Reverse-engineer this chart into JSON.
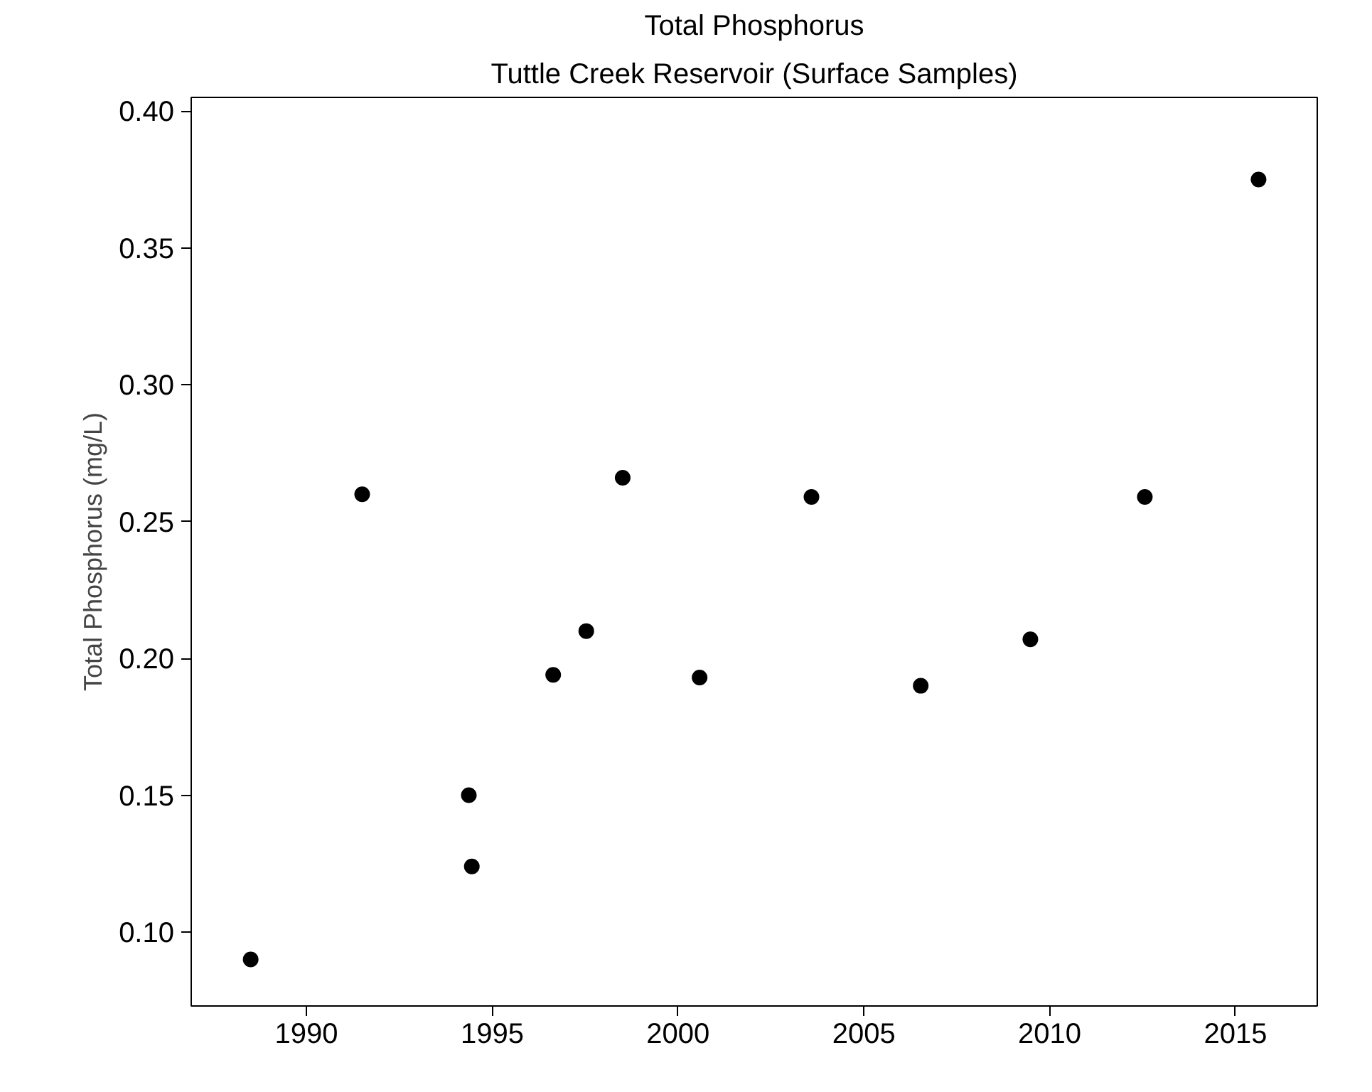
{
  "chart_data": {
    "type": "scatter",
    "title": "Total Phosphorus",
    "subtitle": "Tuttle Creek Reservoir (Surface Samples)",
    "ylabel": "Total Phosphorus (mg/L)",
    "x": [
      1988.5,
      1991.5,
      1994.37,
      1994.45,
      1996.64,
      1997.53,
      1998.51,
      2000.58,
      2003.59,
      2006.53,
      2009.48,
      2012.56,
      2015.62
    ],
    "values": [
      0.09,
      0.26,
      0.15,
      0.124,
      0.194,
      0.21,
      0.266,
      0.193,
      0.259,
      0.19,
      0.207,
      0.259,
      0.375
    ],
    "color": "#000000",
    "marker": "circle",
    "xlim": [
      1986.9,
      2017.2
    ],
    "ylim": [
      0.073,
      0.405
    ],
    "xticks": [
      1990,
      1995,
      2000,
      2005,
      2010,
      2015
    ],
    "yticks": [
      {
        "value": 0.1,
        "label": "0.10"
      },
      {
        "value": 0.15,
        "label": "0.15"
      },
      {
        "value": 0.2,
        "label": "0.20"
      },
      {
        "value": 0.25,
        "label": "0.25"
      },
      {
        "value": 0.3,
        "label": "0.30"
      },
      {
        "value": 0.35,
        "label": "0.35"
      },
      {
        "value": 0.4,
        "label": "0.40"
      }
    ],
    "grid": false
  }
}
